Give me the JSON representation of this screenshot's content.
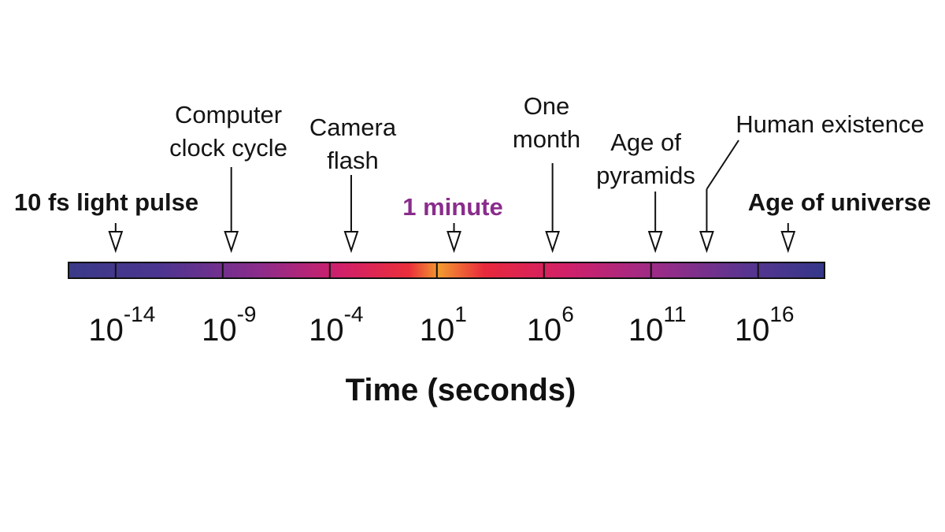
{
  "axis": {
    "label": "Time (seconds)",
    "range": [
      -16.2,
      19.1
    ],
    "ticks": [
      {
        "value": -14,
        "base": "10",
        "label": "-14"
      },
      {
        "value": -9,
        "base": "10",
        "label": "-9"
      },
      {
        "value": -4,
        "base": "10",
        "label": "-4"
      },
      {
        "value": 1,
        "base": "10",
        "label": "1"
      },
      {
        "value": 6,
        "base": "10",
        "label": "6"
      },
      {
        "value": 11,
        "base": "10",
        "label": "11"
      },
      {
        "value": 16,
        "base": "10",
        "label": "16"
      }
    ]
  },
  "events": [
    {
      "lines": [
        "10 fs light pulse"
      ],
      "value": -14,
      "bold": true,
      "color": "#141414"
    },
    {
      "lines": [
        "Computer",
        "clock cycle"
      ],
      "value": -8.6,
      "bold": false,
      "color": "#141414"
    },
    {
      "lines": [
        "Camera",
        "flash"
      ],
      "value": -3,
      "bold": false,
      "color": "#141414"
    },
    {
      "lines": [
        "1 minute"
      ],
      "value": 1.8,
      "bold": true,
      "color": "#8a2c8c"
    },
    {
      "lines": [
        "One",
        "month"
      ],
      "value": 6.4,
      "bold": false,
      "color": "#141414"
    },
    {
      "lines": [
        "Age of",
        "pyramids"
      ],
      "value": 11.2,
      "bold": false,
      "color": "#141414"
    },
    {
      "lines": [
        "Human existence"
      ],
      "value": 13.6,
      "bold": false,
      "color": "#141414"
    },
    {
      "lines": [
        "Age of universe"
      ],
      "value": 17.4,
      "bold": true,
      "color": "#141414"
    }
  ]
}
